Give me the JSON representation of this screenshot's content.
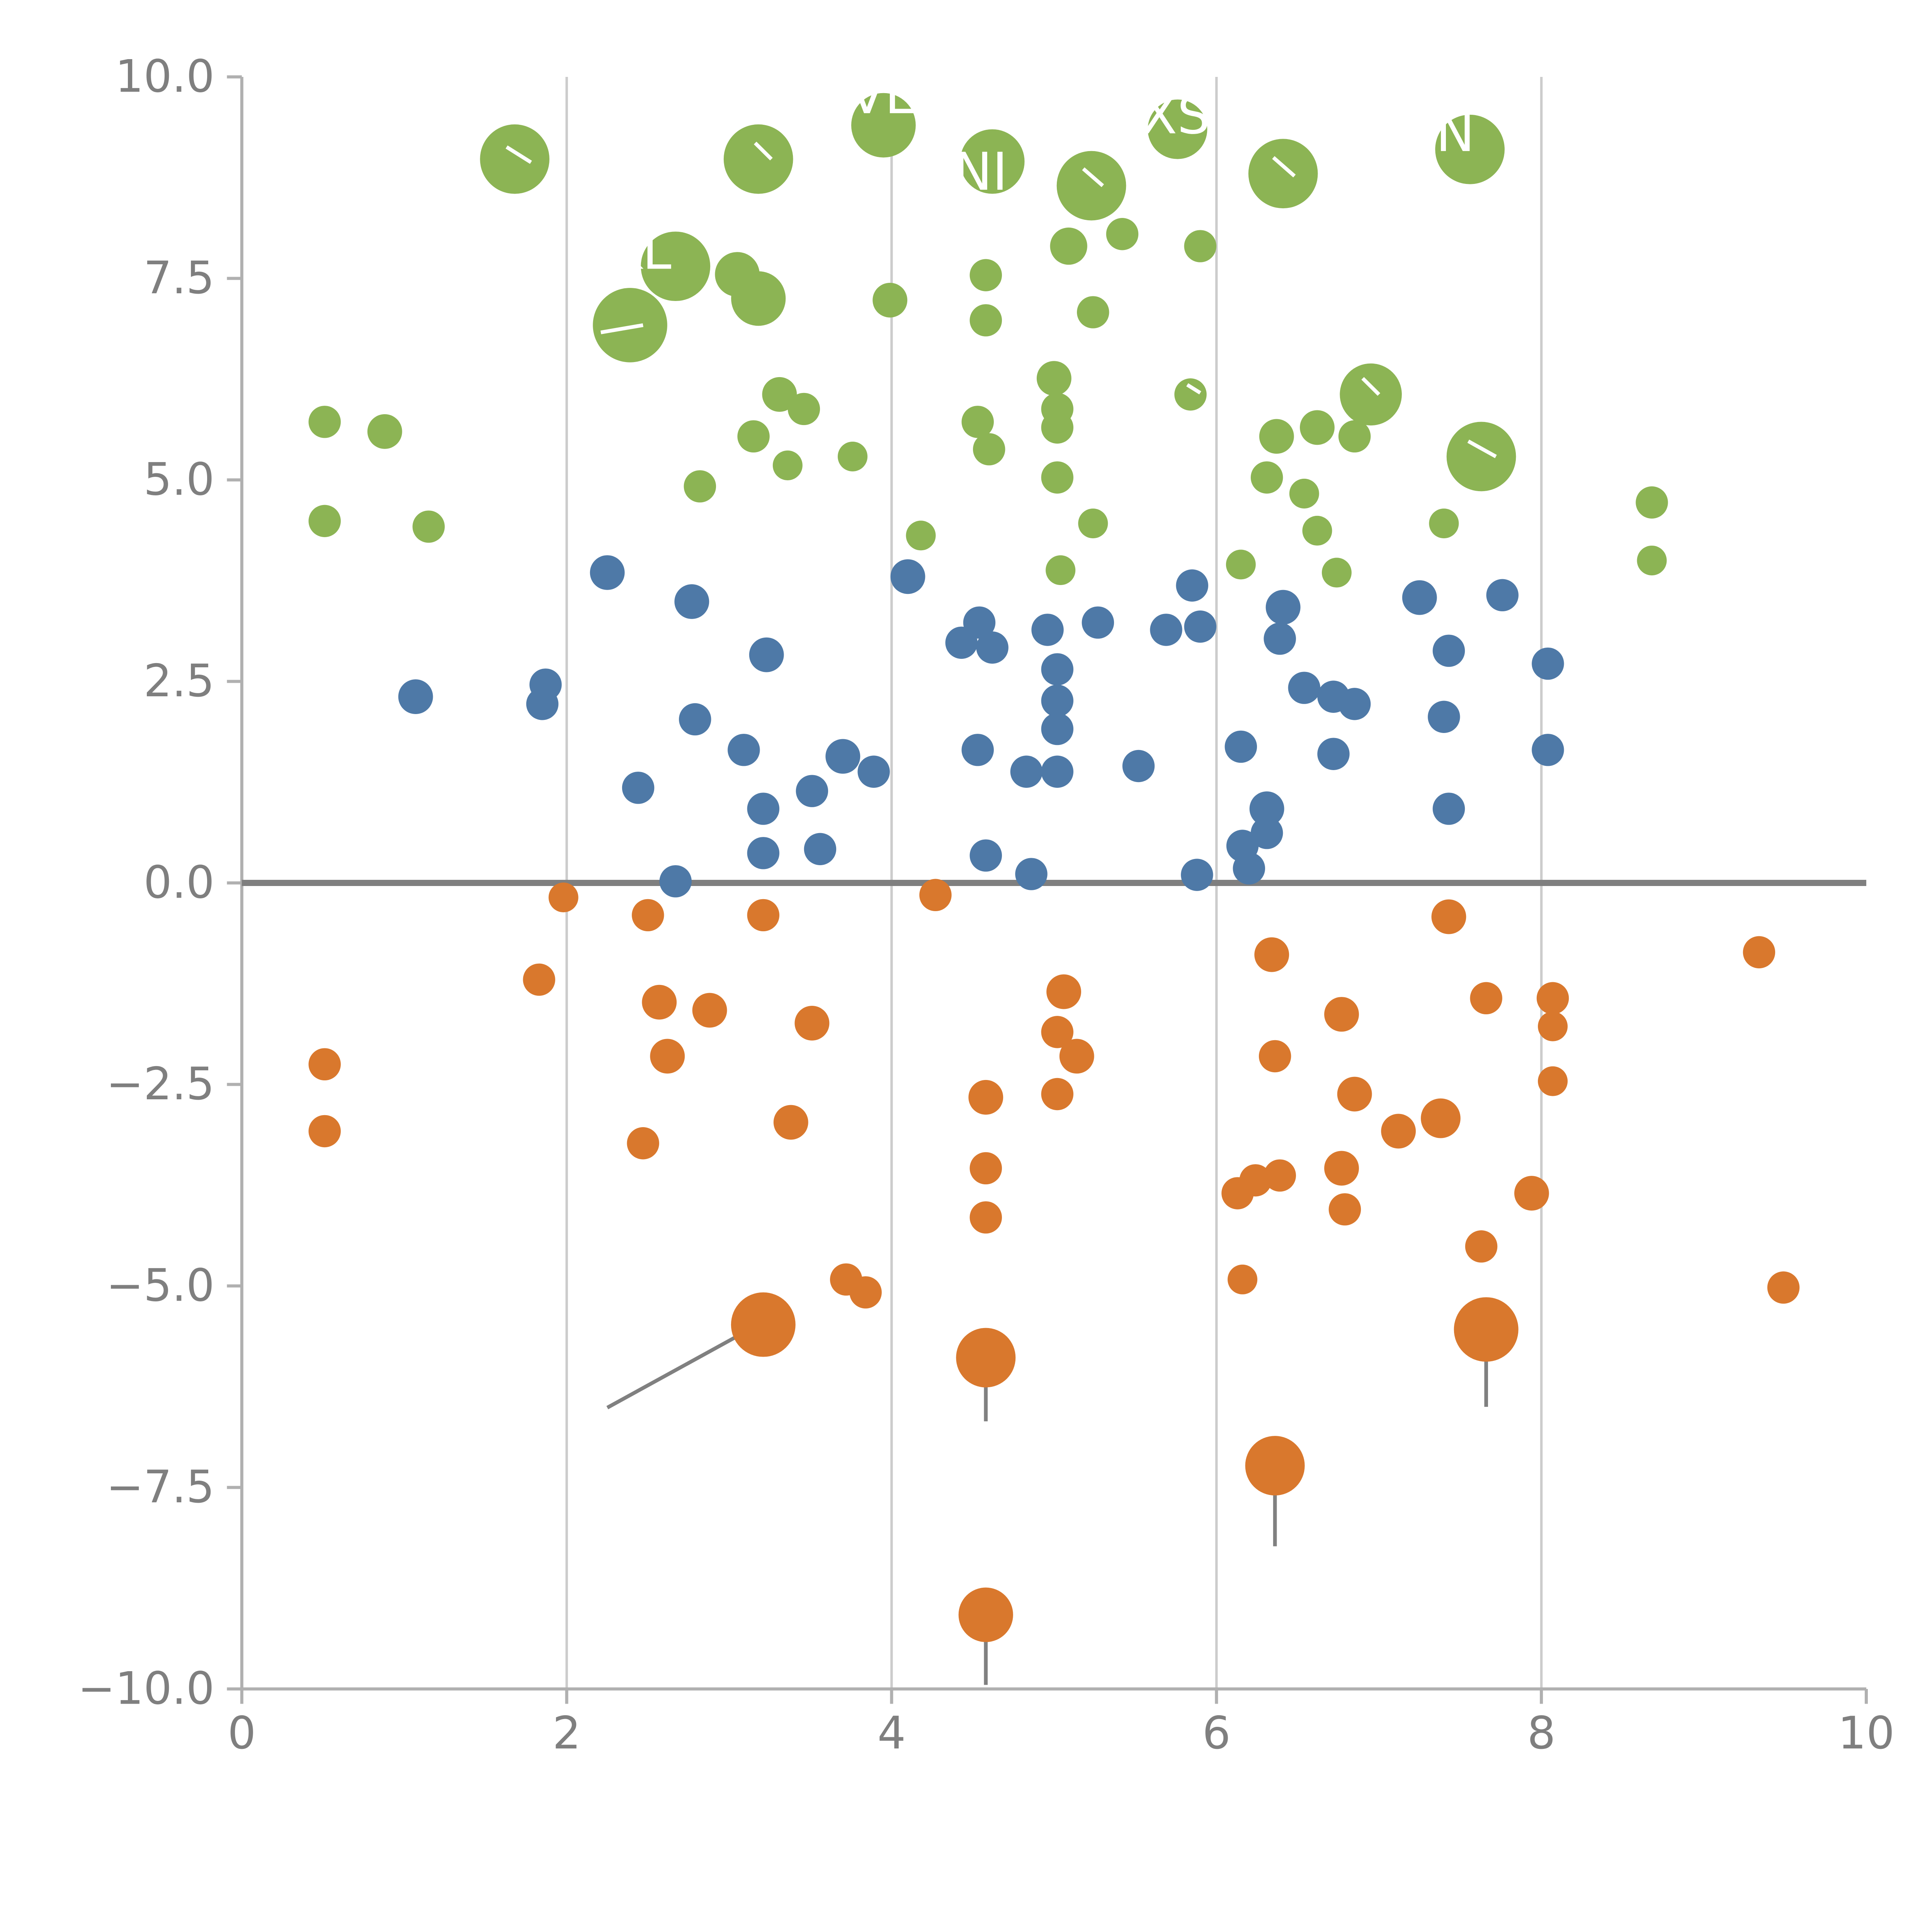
{
  "figure": {
    "background": "#ffffff",
    "axis_color": "#b0b0b0",
    "grid_color": "#cccccc",
    "zero_line_color": "#7f7f7f",
    "tick_label_color": "#7f7f7f",
    "leader_line_color": "#808080"
  },
  "chart_data": {
    "type": "scatter",
    "title": "",
    "xlabel": "",
    "ylabel": "",
    "xlim": [
      0,
      10
    ],
    "ylim": [
      -10,
      10
    ],
    "grid": "vertical-only",
    "x_gridlines": [
      2,
      4,
      6,
      8
    ],
    "x_ticks": [
      0,
      2,
      4,
      6,
      8,
      10
    ],
    "x_tick_labels": [
      "0",
      "2",
      "4",
      "6",
      "8",
      "10"
    ],
    "y_ticks": [
      10,
      7.5,
      5,
      2.5,
      0,
      -2.5,
      -5,
      -7.5,
      -10
    ],
    "y_tick_labels": [
      "10.0",
      "7.5",
      "5.0",
      "2.5",
      "0.0",
      "−2.5",
      "−5.0",
      "−7.5",
      "−10.0"
    ],
    "series": [
      {
        "name": "green",
        "color": "#8cb454",
        "points": [
          [
            1.68,
            8.98,
            28
          ],
          [
            3.18,
            8.98,
            28
          ],
          [
            3.95,
            9.4,
            26
          ],
          [
            4.62,
            8.95,
            26
          ],
          [
            5.23,
            8.65,
            28
          ],
          [
            5.76,
            9.35,
            24
          ],
          [
            6.41,
            8.8,
            28
          ],
          [
            7.56,
            9.1,
            28
          ],
          [
            5.09,
            7.9,
            15
          ],
          [
            5.42,
            8.05,
            13
          ],
          [
            5.9,
            7.9,
            13
          ],
          [
            2.67,
            7.65,
            28
          ],
          [
            3.05,
            7.55,
            18
          ],
          [
            3.18,
            7.25,
            22
          ],
          [
            2.39,
            6.92,
            30
          ],
          [
            3.99,
            7.23,
            14
          ],
          [
            4.58,
            7.54,
            13
          ],
          [
            4.58,
            6.98,
            13
          ],
          [
            5.24,
            7.08,
            13
          ],
          [
            3.31,
            6.06,
            14
          ],
          [
            3.46,
            5.88,
            13
          ],
          [
            5.0,
            6.26,
            14
          ],
          [
            5.02,
            5.88,
            13
          ],
          [
            5.84,
            6.06,
            13
          ],
          [
            6.95,
            6.06,
            25
          ],
          [
            6.62,
            5.65,
            14
          ],
          [
            6.85,
            5.54,
            13
          ],
          [
            0.51,
            5.72,
            13
          ],
          [
            0.88,
            5.6,
            14
          ],
          [
            3.15,
            5.54,
            13
          ],
          [
            4.53,
            5.72,
            13
          ],
          [
            4.6,
            5.38,
            13
          ],
          [
            5.02,
            5.65,
            13
          ],
          [
            6.37,
            5.54,
            14
          ],
          [
            7.63,
            5.29,
            28
          ],
          [
            3.36,
            5.18,
            12
          ],
          [
            3.76,
            5.29,
            12
          ],
          [
            5.02,
            5.03,
            13
          ],
          [
            6.31,
            5.03,
            13
          ],
          [
            2.82,
            4.92,
            13
          ],
          [
            6.54,
            4.83,
            12
          ],
          [
            8.68,
            4.72,
            13
          ],
          [
            0.51,
            4.49,
            13
          ],
          [
            1.15,
            4.42,
            13
          ],
          [
            5.24,
            4.46,
            12
          ],
          [
            6.62,
            4.37,
            12
          ],
          [
            4.18,
            4.31,
            12
          ],
          [
            7.4,
            4.46,
            12
          ],
          [
            8.68,
            4.0,
            12
          ],
          [
            5.04,
            3.88,
            12
          ],
          [
            6.15,
            3.95,
            12
          ],
          [
            6.74,
            3.85,
            12
          ]
        ]
      },
      {
        "name": "blue",
        "color": "#4e79a7",
        "points": [
          [
            2.25,
            3.85,
            14
          ],
          [
            4.1,
            3.8,
            14
          ],
          [
            2.77,
            3.49,
            14
          ],
          [
            5.85,
            3.69,
            13
          ],
          [
            7.25,
            3.54,
            14
          ],
          [
            7.76,
            3.57,
            13
          ],
          [
            4.54,
            3.23,
            13
          ],
          [
            4.96,
            3.14,
            13
          ],
          [
            5.27,
            3.23,
            13
          ],
          [
            5.69,
            3.14,
            13
          ],
          [
            5.9,
            3.18,
            13
          ],
          [
            6.41,
            3.42,
            14
          ],
          [
            6.39,
            3.03,
            13
          ],
          [
            3.23,
            2.83,
            14
          ],
          [
            4.43,
            2.98,
            13
          ],
          [
            4.62,
            2.92,
            13
          ],
          [
            7.43,
            2.88,
            13
          ],
          [
            8.04,
            2.72,
            13
          ],
          [
            1.07,
            2.31,
            14
          ],
          [
            1.87,
            2.46,
            13
          ],
          [
            1.85,
            2.22,
            13
          ],
          [
            5.02,
            2.65,
            13
          ],
          [
            5.02,
            2.26,
            13
          ],
          [
            6.54,
            2.42,
            13
          ],
          [
            6.72,
            2.31,
            13
          ],
          [
            2.79,
            2.03,
            13
          ],
          [
            5.02,
            1.91,
            13
          ],
          [
            6.85,
            2.22,
            13
          ],
          [
            7.4,
            2.06,
            13
          ],
          [
            3.09,
            1.65,
            13
          ],
          [
            3.7,
            1.57,
            14
          ],
          [
            4.53,
            1.65,
            13
          ],
          [
            6.15,
            1.69,
            13
          ],
          [
            6.72,
            1.6,
            13
          ],
          [
            8.04,
            1.65,
            13
          ],
          [
            3.89,
            1.38,
            13
          ],
          [
            4.83,
            1.38,
            13
          ],
          [
            5.02,
            1.38,
            13
          ],
          [
            5.52,
            1.45,
            13
          ],
          [
            2.44,
            1.18,
            13
          ],
          [
            3.51,
            1.14,
            13
          ],
          [
            3.21,
            0.92,
            13
          ],
          [
            6.31,
            0.92,
            14
          ],
          [
            7.43,
            0.92,
            13
          ],
          [
            6.31,
            0.62,
            13
          ],
          [
            3.21,
            0.37,
            13
          ],
          [
            3.56,
            0.42,
            13
          ],
          [
            4.58,
            0.34,
            13
          ],
          [
            6.16,
            0.46,
            13
          ],
          [
            6.2,
            0.18,
            13
          ],
          [
            4.86,
            0.11,
            13
          ],
          [
            2.67,
            0.02,
            13
          ],
          [
            5.88,
            0.1,
            13
          ]
        ]
      },
      {
        "name": "orange",
        "color": "#d9782d",
        "points": [
          [
            1.98,
            -0.18,
            12
          ],
          [
            2.5,
            -0.4,
            13
          ],
          [
            3.21,
            -0.4,
            13
          ],
          [
            4.27,
            -0.15,
            13
          ],
          [
            7.43,
            -0.42,
            14
          ],
          [
            6.34,
            -0.89,
            14
          ],
          [
            9.34,
            -0.86,
            13
          ],
          [
            1.83,
            -1.2,
            13
          ],
          [
            2.57,
            -1.48,
            14
          ],
          [
            2.88,
            -1.58,
            14
          ],
          [
            5.06,
            -1.35,
            14
          ],
          [
            8.07,
            -1.43,
            13
          ],
          [
            7.66,
            -1.43,
            13
          ],
          [
            3.51,
            -1.74,
            14
          ],
          [
            5.02,
            -1.85,
            13
          ],
          [
            6.77,
            -1.63,
            14
          ],
          [
            2.62,
            -2.15,
            14
          ],
          [
            5.14,
            -2.15,
            14
          ],
          [
            0.51,
            -2.25,
            13
          ],
          [
            8.07,
            -1.78,
            12
          ],
          [
            6.36,
            -2.15,
            13
          ],
          [
            4.58,
            -2.66,
            14
          ],
          [
            5.02,
            -2.62,
            13
          ],
          [
            6.85,
            -2.62,
            14
          ],
          [
            0.51,
            -3.08,
            13
          ],
          [
            3.38,
            -2.97,
            14
          ],
          [
            7.12,
            -3.08,
            14
          ],
          [
            8.07,
            -2.46,
            12
          ],
          [
            2.47,
            -3.23,
            13
          ],
          [
            7.38,
            -2.92,
            16
          ],
          [
            4.58,
            -3.54,
            13
          ],
          [
            6.24,
            -3.69,
            13
          ],
          [
            6.39,
            -3.63,
            13
          ],
          [
            6.77,
            -3.54,
            14
          ],
          [
            4.58,
            -4.15,
            13
          ],
          [
            6.13,
            -3.85,
            13
          ],
          [
            6.79,
            -4.05,
            13
          ],
          [
            7.94,
            -3.85,
            14
          ],
          [
            7.63,
            -4.51,
            13
          ],
          [
            3.72,
            -4.92,
            13
          ],
          [
            3.84,
            -5.08,
            13
          ],
          [
            6.16,
            -4.92,
            12
          ],
          [
            9.49,
            -5.02,
            13
          ],
          [
            3.21,
            -5.48,
            26
          ],
          [
            4.58,
            -5.89,
            24
          ],
          [
            7.66,
            -5.54,
            26
          ],
          [
            6.36,
            -7.23,
            24
          ],
          [
            4.58,
            -9.08,
            22
          ]
        ]
      }
    ],
    "bubble_labels": [
      {
        "text": "AVE",
        "x": 3.85,
        "y": 9.55
      },
      {
        "text": "XS",
        "x": 5.75,
        "y": 9.3
      },
      {
        "text": "N",
        "x": 7.47,
        "y": 9.08
      },
      {
        "text": "INI",
        "x": 4.5,
        "y": 8.6
      },
      {
        "text": "KL",
        "x": 2.45,
        "y": 7.62
      }
    ],
    "white_ticks": [
      [
        1.63,
        9.13,
        1.78,
        8.94
      ],
      [
        3.16,
        9.18,
        3.26,
        8.98
      ],
      [
        5.18,
        8.86,
        5.3,
        8.65
      ],
      [
        6.35,
        9.0,
        6.48,
        8.77
      ],
      [
        2.21,
        6.83,
        2.47,
        6.92
      ],
      [
        5.82,
        6.18,
        5.9,
        6.08
      ],
      [
        6.9,
        6.26,
        7.0,
        6.06
      ],
      [
        7.55,
        5.48,
        7.72,
        5.29
      ]
    ],
    "leader_lines": [
      [
        2.25,
        -6.51,
        3.18,
        -5.48
      ],
      [
        4.58,
        -5.97,
        4.58,
        -6.68
      ],
      [
        7.66,
        -5.63,
        7.66,
        -6.5
      ],
      [
        6.36,
        -7.32,
        6.36,
        -8.23
      ],
      [
        4.58,
        -9.17,
        4.58,
        -9.95
      ]
    ]
  }
}
